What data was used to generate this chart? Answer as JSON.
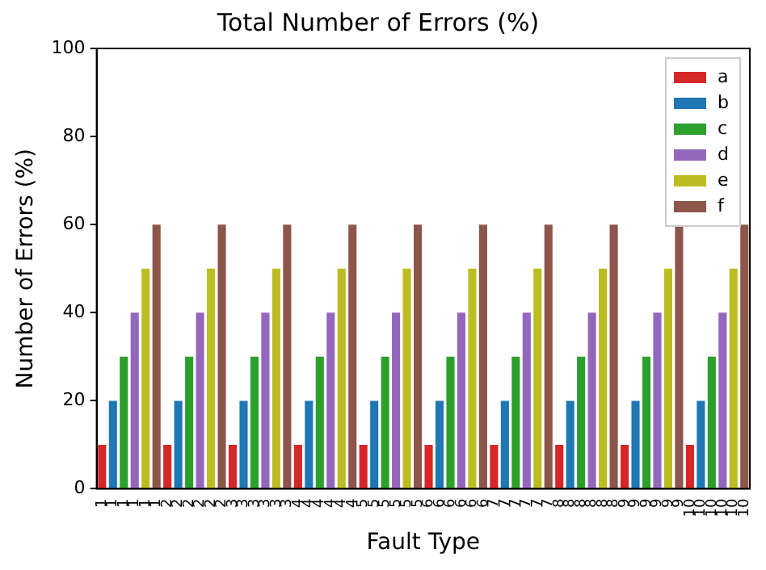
{
  "chart_data": {
    "type": "bar",
    "title": "Total Number of Errors (%)",
    "xlabel": "Fault Type",
    "ylabel": "Number of Errors (%)",
    "categories": [
      "1",
      "1",
      "1",
      "1",
      "1",
      "1",
      "2",
      "2",
      "2",
      "2",
      "2",
      "2",
      "3",
      "3",
      "3",
      "3",
      "3",
      "3",
      "4",
      "4",
      "4",
      "4",
      "4",
      "4",
      "5",
      "5",
      "5",
      "5",
      "5",
      "5",
      "6",
      "6",
      "6",
      "6",
      "6",
      "6",
      "7",
      "7",
      "7",
      "7",
      "7",
      "7",
      "8",
      "8",
      "8",
      "8",
      "8",
      "8",
      "9",
      "9",
      "9",
      "9",
      "9",
      "9",
      "10",
      "10",
      "10",
      "10",
      "10",
      "10"
    ],
    "series": [
      {
        "name": "a",
        "color": "#d62728",
        "values": [
          10,
          null,
          null,
          null,
          null,
          null,
          10,
          null,
          null,
          null,
          null,
          null,
          10,
          null,
          null,
          null,
          null,
          null,
          10,
          null,
          null,
          null,
          null,
          null,
          10,
          null,
          null,
          null,
          null,
          null,
          10,
          null,
          null,
          null,
          null,
          null,
          10,
          null,
          null,
          null,
          null,
          null,
          10,
          null,
          null,
          null,
          null,
          null,
          10,
          null,
          null,
          null,
          null,
          null,
          10,
          null,
          null,
          null,
          null,
          null
        ]
      },
      {
        "name": "b",
        "color": "#1f77b4",
        "values": [
          null,
          20,
          null,
          null,
          null,
          null,
          null,
          20,
          null,
          null,
          null,
          null,
          null,
          20,
          null,
          null,
          null,
          null,
          null,
          20,
          null,
          null,
          null,
          null,
          null,
          20,
          null,
          null,
          null,
          null,
          null,
          20,
          null,
          null,
          null,
          null,
          null,
          20,
          null,
          null,
          null,
          null,
          null,
          20,
          null,
          null,
          null,
          null,
          null,
          20,
          null,
          null,
          null,
          null,
          null,
          20,
          null,
          null,
          null,
          null
        ]
      },
      {
        "name": "c",
        "color": "#2ca02c",
        "values": [
          null,
          null,
          30,
          null,
          null,
          null,
          null,
          null,
          30,
          null,
          null,
          null,
          null,
          null,
          30,
          null,
          null,
          null,
          null,
          null,
          30,
          null,
          null,
          null,
          null,
          null,
          30,
          null,
          null,
          null,
          null,
          null,
          30,
          null,
          null,
          null,
          null,
          null,
          30,
          null,
          null,
          null,
          null,
          null,
          30,
          null,
          null,
          null,
          null,
          null,
          30,
          null,
          null,
          null,
          null,
          null,
          30,
          null,
          null,
          null
        ]
      },
      {
        "name": "d",
        "color": "#9467bd",
        "values": [
          null,
          null,
          null,
          40,
          null,
          null,
          null,
          null,
          null,
          40,
          null,
          null,
          null,
          null,
          null,
          40,
          null,
          null,
          null,
          null,
          null,
          40,
          null,
          null,
          null,
          null,
          null,
          40,
          null,
          null,
          null,
          null,
          null,
          40,
          null,
          null,
          null,
          null,
          null,
          40,
          null,
          null,
          null,
          null,
          null,
          40,
          null,
          null,
          null,
          null,
          null,
          40,
          null,
          null,
          null,
          null,
          null,
          40,
          null,
          null
        ]
      },
      {
        "name": "e",
        "color": "#bcbd22",
        "values": [
          null,
          null,
          null,
          null,
          50,
          null,
          null,
          null,
          null,
          null,
          50,
          null,
          null,
          null,
          null,
          null,
          50,
          null,
          null,
          null,
          null,
          null,
          50,
          null,
          null,
          null,
          null,
          null,
          50,
          null,
          null,
          null,
          null,
          null,
          50,
          null,
          null,
          null,
          null,
          null,
          50,
          null,
          null,
          null,
          null,
          null,
          50,
          null,
          null,
          null,
          null,
          null,
          50,
          null,
          null,
          null,
          null,
          null,
          50,
          null
        ]
      },
      {
        "name": "f",
        "color": "#8c564b",
        "values": [
          null,
          null,
          null,
          null,
          null,
          60,
          null,
          null,
          null,
          null,
          null,
          60,
          null,
          null,
          null,
          null,
          null,
          60,
          null,
          null,
          null,
          null,
          null,
          60,
          null,
          null,
          null,
          null,
          null,
          60,
          null,
          null,
          null,
          null,
          null,
          60,
          null,
          null,
          null,
          null,
          null,
          60,
          null,
          null,
          null,
          null,
          null,
          60,
          null,
          null,
          null,
          null,
          null,
          60,
          null,
          null,
          null,
          null,
          null,
          60
        ]
      }
    ],
    "ylim": [
      0,
      100
    ],
    "yticks": [
      0,
      20,
      40,
      60,
      80,
      100
    ],
    "grid": false,
    "legend": "top right"
  }
}
